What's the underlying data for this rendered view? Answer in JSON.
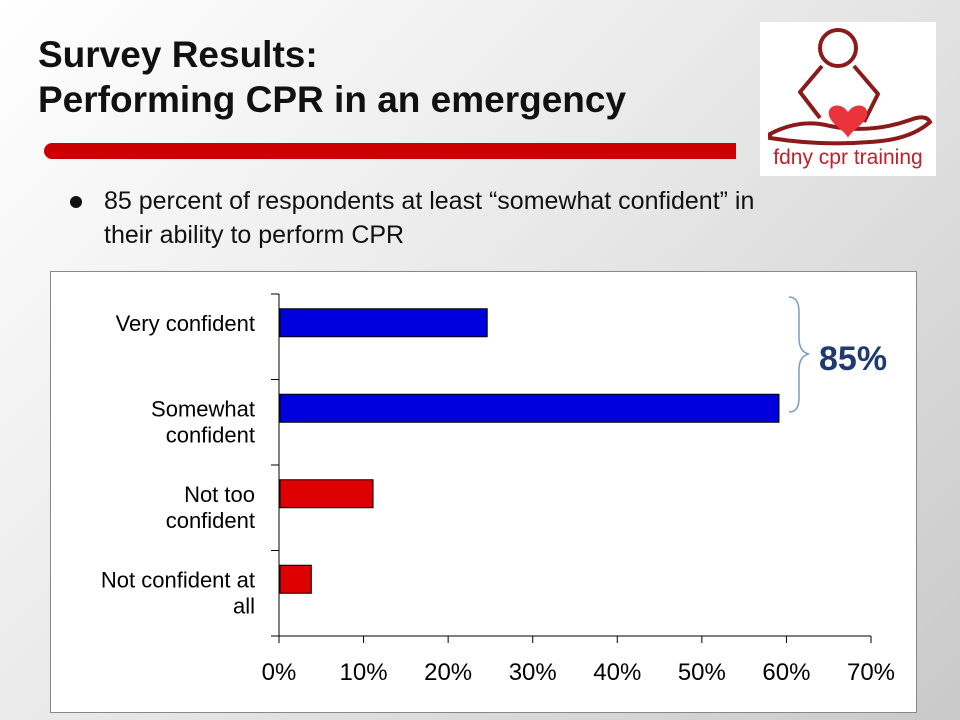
{
  "slide": {
    "title_line1": "Survey Results:",
    "title_line2": "Performing CPR in an emergency",
    "bullet": "85 percent of respondents at least “somewhat confident” in their ability to perform CPR",
    "logo_text": "fdny cpr training",
    "bracket_label": "85%"
  },
  "colors": {
    "accent_red": "#cc0000",
    "bar_blue": "#0000dd",
    "bar_red": "#dd0000",
    "bracket_text": "#1f3a70"
  },
  "chart_data": {
    "type": "bar",
    "orientation": "horizontal",
    "categories": [
      [
        "Very confident"
      ],
      [
        "Somewhat",
        "confident"
      ],
      [
        "Not too",
        "confident"
      ],
      [
        "Not confident at",
        "all"
      ]
    ],
    "values": [
      24.5,
      59,
      11,
      3.7
    ],
    "bar_colors": [
      "#0000dd",
      "#0000dd",
      "#dd0000",
      "#dd0000"
    ],
    "xlim": [
      0,
      70
    ],
    "xticks": [
      "0%",
      "10%",
      "20%",
      "30%",
      "40%",
      "50%",
      "60%",
      "70%"
    ],
    "grid": false
  }
}
